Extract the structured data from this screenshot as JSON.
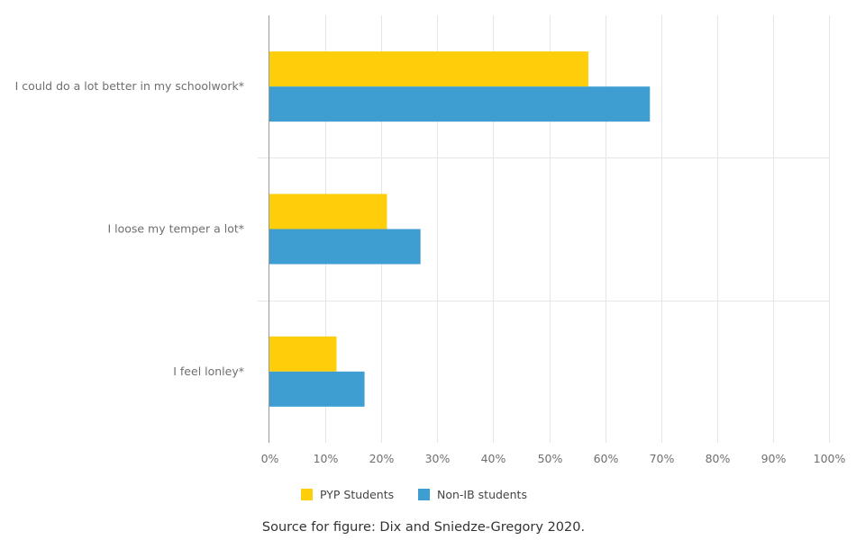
{
  "chart_data": {
    "type": "bar",
    "orientation": "horizontal",
    "categories": [
      "I could do a lot better in my schoolwork*",
      "I loose my temper a lot*",
      "I feel lonley*"
    ],
    "series": [
      {
        "name": "PYP Students",
        "values": [
          57,
          21,
          12
        ],
        "color": "#FFCE0A"
      },
      {
        "name": "Non-IB students",
        "values": [
          68,
          27,
          17
        ],
        "color": "#3E9ED2"
      }
    ],
    "xlim": [
      0,
      100
    ],
    "xticks": [
      "0%",
      "10%",
      "20%",
      "30%",
      "40%",
      "50%",
      "60%",
      "70%",
      "80%",
      "90%",
      "100%"
    ],
    "grid": true,
    "legend_position": "bottom"
  },
  "caption": "Source for figure: Dix and Sniedze-Gregory 2020."
}
